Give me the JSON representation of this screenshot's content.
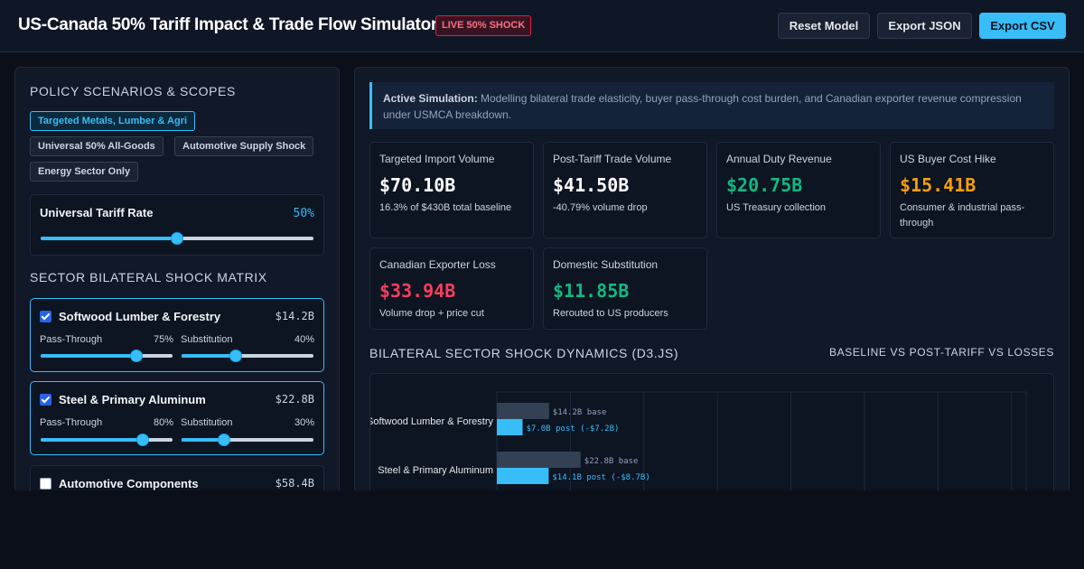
{
  "header": {
    "title": "US-Canada 50% Tariff Impact & Trade Flow Simulator",
    "badge": "LIVE 50% SHOCK",
    "buttons": {
      "reset": "Reset Model",
      "export_json": "Export JSON",
      "export_csv": "Export CSV"
    }
  },
  "left": {
    "scenarios_title": "POLICY SCENARIOS & SCOPES",
    "scenarios": [
      {
        "label": "Targeted Metals, Lumber & Agri",
        "active": true
      },
      {
        "label": "Universal 50% All-Goods",
        "active": false
      },
      {
        "label": "Automotive Supply Shock",
        "active": false
      },
      {
        "label": "Energy Sector Only",
        "active": false
      }
    ],
    "tariff": {
      "label": "Universal Tariff Rate",
      "value_text": "50%",
      "value": 50,
      "min": 0,
      "max": 100
    },
    "matrix_title": "SECTOR BILATERAL SHOCK MATRIX",
    "sectors": [
      {
        "name": "Softwood Lumber & Forestry",
        "value": "$14.2B",
        "checked": true,
        "pass_label": "Pass-Through",
        "pass_text": "75%",
        "pass": 75,
        "sub_label": "Substitution",
        "sub_text": "40%",
        "sub": 40
      },
      {
        "name": "Steel & Primary Aluminum",
        "value": "$22.8B",
        "checked": true,
        "pass_label": "Pass-Through",
        "pass_text": "80%",
        "pass": 80,
        "sub_label": "Substitution",
        "sub_text": "30%",
        "sub": 30
      },
      {
        "name": "Automotive Components",
        "value": "$58.4B",
        "checked": false
      }
    ]
  },
  "main": {
    "banner": {
      "bold": "Active Simulation:",
      "text": " Modelling bilateral trade elasticity, buyer pass-through cost burden, and Canadian exporter revenue compression under USMCA breakdown."
    },
    "cards": [
      {
        "label": "Targeted Import Volume",
        "value": "$70.10B",
        "note": "16.3% of $430B total baseline",
        "color": "#ffffff"
      },
      {
        "label": "Post-Tariff Trade Volume",
        "value": "$41.50B",
        "note": "-40.79% volume drop",
        "color": "#ffffff"
      },
      {
        "label": "Annual Duty Revenue",
        "value": "$20.75B",
        "note": "US Treasury collection",
        "color": "#10b981"
      },
      {
        "label": "US Buyer Cost Hike",
        "value": "$15.41B",
        "note": "Consumer & industrial pass-through",
        "color": "#f59e0b"
      },
      {
        "label": "Canadian Exporter Loss",
        "value": "$33.94B",
        "note": "Volume drop + price cut",
        "color": "#f43f5e"
      },
      {
        "label": "Domestic Substitution",
        "value": "$11.85B",
        "note": "Rerouted to US producers",
        "color": "#10b981"
      }
    ],
    "chart_title": "BILATERAL SECTOR SHOCK DYNAMICS (D3.JS)",
    "chart_subtitle": "BASELINE VS POST-TARIFF VS LOSSES"
  },
  "colors": {
    "accent": "#38bdf8",
    "base_bar": "#334155",
    "post_bar": "#38bdf8",
    "danger": "#f43f5e"
  },
  "chart_data": {
    "type": "bar",
    "orientation": "horizontal",
    "title": "BILATERAL SECTOR SHOCK DYNAMICS (D3.JS)",
    "subtitle": "BASELINE VS POST-TARIFF VS LOSSES",
    "categories": [
      "Softwood Lumber & Forestry",
      "Steel & Primary Aluminum"
    ],
    "series": [
      {
        "values": [
          14.2,
          22.8
        ],
        "labels": [
          "$14.2B base",
          "$22.8B base"
        ],
        "color": "#334155"
      },
      {
        "values": [
          7.0,
          14.1
        ],
        "labels": [
          "$7.0B post (-$7.2B)",
          "$14.1B post (-$8.7B)"
        ],
        "color": "#38bdf8"
      }
    ],
    "xlim": [
      0,
      144
    ],
    "grid": true
  }
}
